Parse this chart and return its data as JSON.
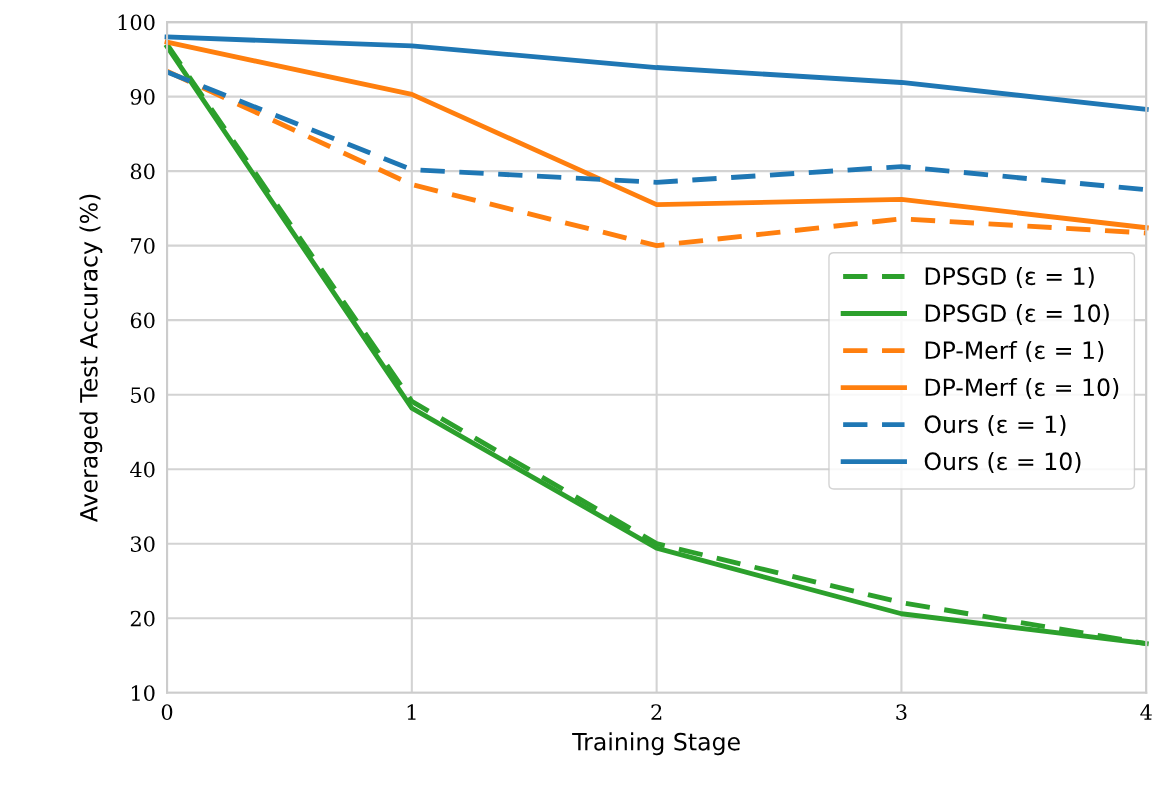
{
  "chart_data": {
    "type": "line",
    "xlabel": "Training Stage",
    "ylabel": "Averaged Test Accuracy (%)",
    "x": [
      0,
      1,
      2,
      3,
      4
    ],
    "xlim": [
      0,
      4
    ],
    "xticks": [
      0,
      1,
      2,
      3,
      4
    ],
    "ylim": [
      10,
      100
    ],
    "yticks": [
      10,
      20,
      30,
      40,
      50,
      60,
      70,
      80,
      90,
      100
    ],
    "grid": true,
    "legend": "right",
    "marker": "none",
    "series": [
      {
        "name": "DPSGD (ε = 1)",
        "color": "#2ca02c",
        "line_style": "dashed",
        "values": [
          97,
          49.1,
          30,
          22.1,
          16.6
        ]
      },
      {
        "name": "DPSGD (ε = 10)",
        "color": "#2ca02c",
        "line_style": "solid",
        "values": [
          96.7,
          48.2,
          29.4,
          20.6,
          16.6
        ]
      },
      {
        "name": "DP-Merf (ε = 1)",
        "color": "#ff7f0e",
        "line_style": "dashed",
        "values": [
          93.4,
          78.2,
          70,
          73.6,
          71.7
        ]
      },
      {
        "name": "DP-Merf (ε = 10)",
        "color": "#ff7f0e",
        "line_style": "solid",
        "values": [
          97.3,
          90.3,
          75.5,
          76.2,
          72.4
        ]
      },
      {
        "name": "Ours (ε = 1)",
        "color": "#1f77b4",
        "line_style": "dashed",
        "values": [
          93.3,
          80.2,
          78.5,
          80.6,
          77.5
        ]
      },
      {
        "name": "Ours (ε = 10)",
        "color": "#1f77b4",
        "line_style": "solid",
        "values": [
          98,
          96.8,
          93.9,
          91.9,
          88.3
        ]
      }
    ]
  }
}
